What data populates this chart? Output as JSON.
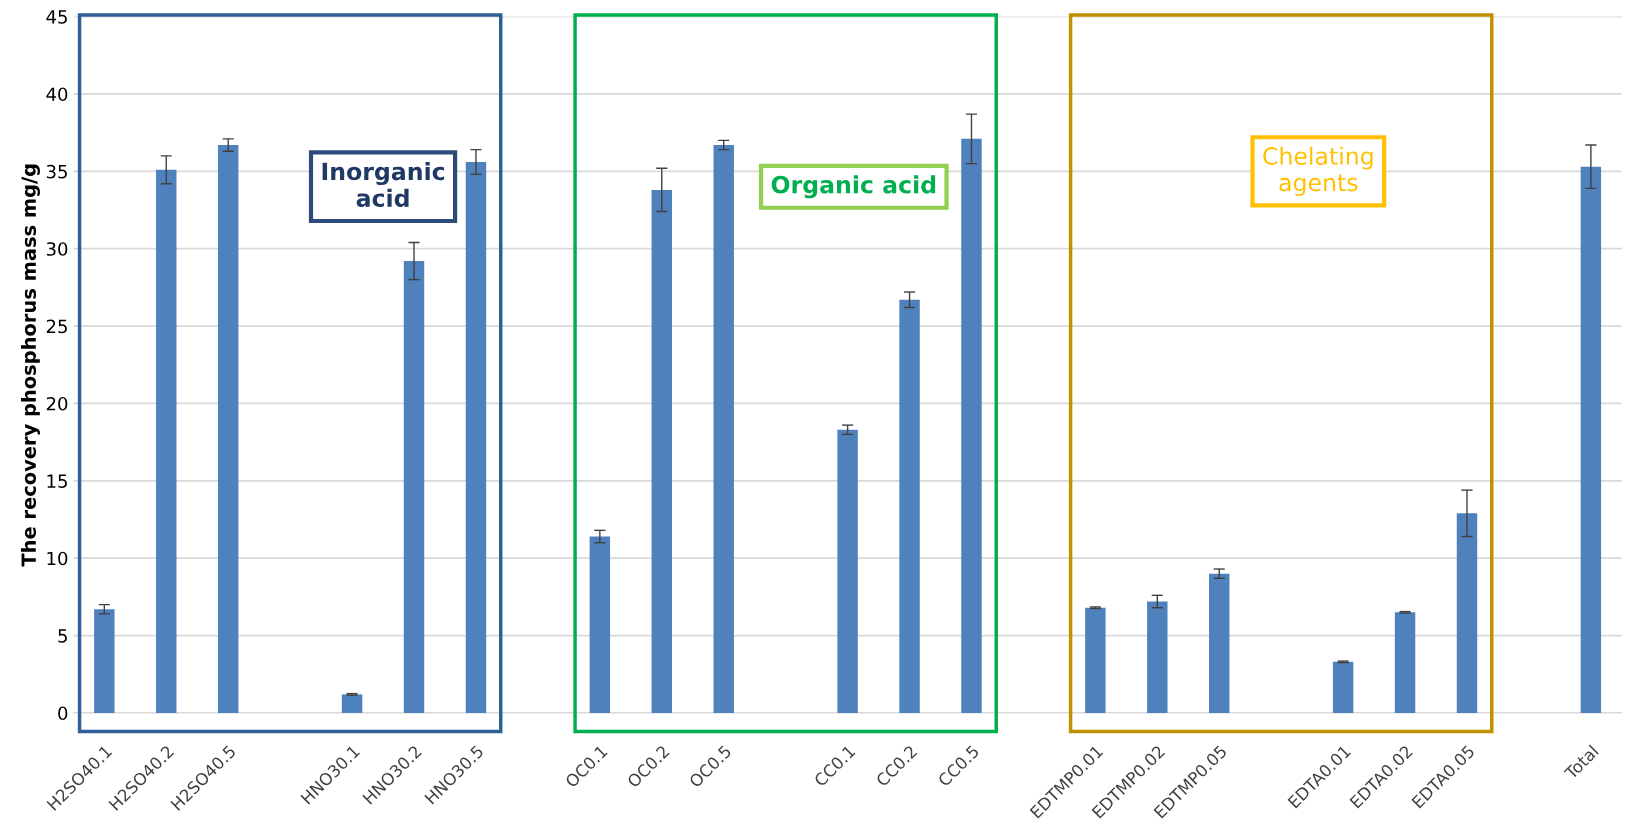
{
  "chart_data": {
    "type": "bar",
    "ylabel": "The recovery phosphorus mass mg/g",
    "categories": [
      "H2SO40.1",
      "H2SO40.2",
      "H2SO40.5",
      null,
      "HNO30.1",
      "HNO30.2",
      "HNO30.5",
      null,
      "OC0.1",
      "OC0.2",
      "OC0.5",
      null,
      "CC0.1",
      "CC0.2",
      "CC0.5",
      null,
      "EDTMP0.01",
      "EDTMP0.02",
      "EDTMP0.05",
      null,
      "EDTA0.01",
      "EDTA0.02",
      "EDTA0.05",
      null,
      "Total"
    ],
    "values": [
      6.7,
      35.1,
      36.7,
      null,
      1.2,
      29.2,
      35.6,
      null,
      11.4,
      33.8,
      36.7,
      null,
      18.3,
      26.7,
      37.1,
      null,
      6.8,
      7.2,
      9.0,
      null,
      3.3,
      6.5,
      12.9,
      null,
      35.3
    ],
    "errors": [
      0.3,
      0.9,
      0.4,
      null,
      0.05,
      1.2,
      0.8,
      null,
      0.4,
      1.4,
      0.3,
      null,
      0.3,
      0.5,
      1.6,
      null,
      0.05,
      0.4,
      0.3,
      null,
      0.05,
      0.05,
      1.5,
      null,
      1.4
    ],
    "color": "#4f81bd",
    "ylim": [
      0,
      45
    ],
    "yticks": [
      0,
      5,
      10,
      15,
      20,
      25,
      30,
      35,
      40,
      45
    ],
    "grid": "y",
    "annotations": [
      "Inorganic\nacid",
      "Organic acid",
      "Chelating\nagents"
    ]
  }
}
